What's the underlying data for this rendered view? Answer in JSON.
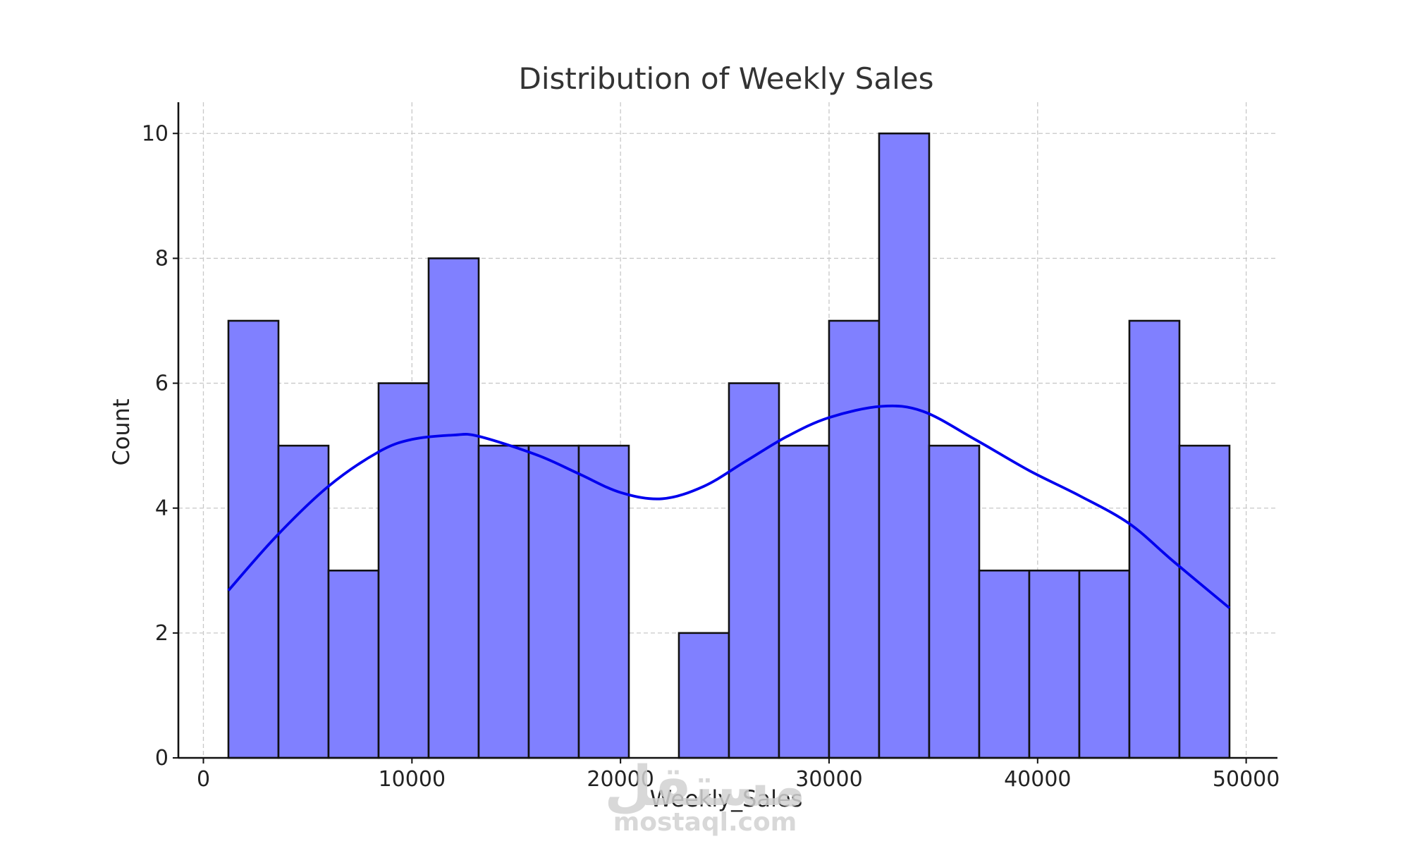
{
  "chart_data": {
    "type": "bar",
    "title": "Distribution of Weekly Sales",
    "xlabel": "Weekly_Sales",
    "ylabel": "Count",
    "xlim": [
      -1200,
      51500
    ],
    "ylim": [
      0,
      10.5
    ],
    "xticks": [
      0,
      10000,
      20000,
      30000,
      40000,
      50000
    ],
    "yticks": [
      0,
      2,
      4,
      6,
      8,
      10
    ],
    "grid": true,
    "bins": [
      {
        "start": 1200,
        "end": 3600,
        "count": 7
      },
      {
        "start": 3600,
        "end": 6000,
        "count": 5
      },
      {
        "start": 6000,
        "end": 8400,
        "count": 3
      },
      {
        "start": 8400,
        "end": 10800,
        "count": 6
      },
      {
        "start": 10800,
        "end": 13200,
        "count": 8
      },
      {
        "start": 13200,
        "end": 15600,
        "count": 5
      },
      {
        "start": 15600,
        "end": 18000,
        "count": 5
      },
      {
        "start": 18000,
        "end": 20400,
        "count": 5
      },
      {
        "start": 20400,
        "end": 22800,
        "count": 0
      },
      {
        "start": 22800,
        "end": 25200,
        "count": 2
      },
      {
        "start": 25200,
        "end": 27600,
        "count": 6
      },
      {
        "start": 27600,
        "end": 30000,
        "count": 5
      },
      {
        "start": 30000,
        "end": 32400,
        "count": 7
      },
      {
        "start": 32400,
        "end": 34800,
        "count": 10
      },
      {
        "start": 34800,
        "end": 37200,
        "count": 5
      },
      {
        "start": 37200,
        "end": 39600,
        "count": 3
      },
      {
        "start": 39600,
        "end": 42000,
        "count": 3
      },
      {
        "start": 42000,
        "end": 44400,
        "count": 3
      },
      {
        "start": 44400,
        "end": 46800,
        "count": 7
      },
      {
        "start": 46800,
        "end": 49200,
        "count": 5
      }
    ],
    "kde": {
      "x": [
        1200,
        3500,
        6000,
        8400,
        10000,
        12000,
        13200,
        16000,
        18000,
        20000,
        22000,
        24000,
        26000,
        28000,
        30000,
        32500,
        34500,
        37000,
        39600,
        42000,
        44400,
        46500,
        49200
      ],
      "y": [
        2.68,
        3.55,
        4.35,
        4.9,
        5.1,
        5.17,
        5.15,
        4.85,
        4.55,
        4.25,
        4.15,
        4.35,
        4.75,
        5.15,
        5.45,
        5.63,
        5.55,
        5.1,
        4.6,
        4.2,
        3.75,
        3.15,
        2.4
      ],
      "color": "#0000ee"
    },
    "bar_color": "#8080ff",
    "edge_color": "#111111"
  },
  "watermark": {
    "text_ar": "مستقل",
    "text_en": "mostaql.com"
  }
}
